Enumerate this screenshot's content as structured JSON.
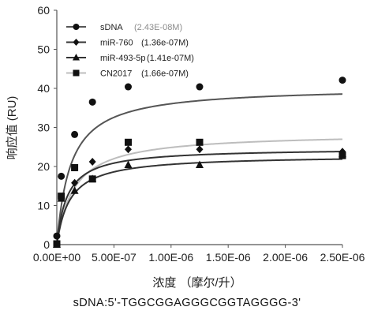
{
  "chart_data": {
    "type": "scatter",
    "ylabel": "响应值 (RU)",
    "xlabel": "浓度 （摩尔/升）",
    "xlim": [
      0,
      2.5e-06
    ],
    "ylim": [
      0,
      60
    ],
    "x_ticks": [
      0,
      5e-07,
      1e-06,
      1.5e-06,
      2e-06,
      2.5e-06
    ],
    "x_tick_labels": [
      "0.00E+00",
      "5.00E-07",
      "1.00E-06",
      "1.50E-06",
      "2.00E-06",
      "2.50E-06"
    ],
    "y_ticks": [
      0,
      10,
      20,
      30,
      40,
      50,
      60
    ],
    "y_tick_labels": [
      "0",
      "10",
      "20",
      "30",
      "40",
      "50",
      "60"
    ],
    "grid": false,
    "legend_position": "top-left",
    "series": [
      {
        "name": "sDNA",
        "kd_label": "(2.43E-08M)",
        "kd_color": "#8c8c8c",
        "marker": "circle",
        "marker_color": "#111111",
        "line_color": "#555555",
        "x": [
          0,
          3.9e-08,
          1.56e-07,
          3.12e-07,
          6.25e-07,
          1.25e-06,
          2.5e-06
        ],
        "y": [
          2.2,
          17.5,
          28.2,
          36.5,
          40.4,
          40.4,
          42.1
        ],
        "curve": {
          "Rmax": 40.4,
          "Kd": 1.2e-07
        }
      },
      {
        "name": "miR-760",
        "kd_label": "(1.36e-07M)",
        "kd_color": "#222222",
        "marker": "diamond",
        "marker_color": "#111111",
        "line_color": "#333333",
        "x": [
          0,
          3.9e-08,
          1.56e-07,
          3.12e-07,
          6.25e-07,
          1.25e-06,
          2.5e-06
        ],
        "y": [
          0.2,
          12.2,
          15.8,
          21.2,
          24.4,
          24.4,
          23.8
        ],
        "curve": {
          "Rmax": 24.7,
          "Kd": 9.2e-08
        }
      },
      {
        "name": "miR-493-5p",
        "kd_label": "(1.41e-07M)",
        "kd_color": "#222222",
        "marker": "triangle",
        "marker_color": "#111111",
        "line_color": "#333333",
        "x": [
          0,
          3.9e-08,
          1.56e-07,
          3.12e-07,
          6.25e-07,
          1.25e-06,
          2.5e-06
        ],
        "y": [
          0,
          11.8,
          13.8,
          16.8,
          20.4,
          20.4,
          23.2
        ],
        "curve": {
          "Rmax": 22.9,
          "Kd": 1.15e-07
        }
      },
      {
        "name": "CN2017",
        "kd_label": "(1.66e-07M)",
        "kd_color": "#222222",
        "marker": "square",
        "marker_color": "#111111",
        "line_color": "#bdbdbd",
        "x": [
          0,
          3.9e-08,
          1.56e-07,
          3.12e-07,
          6.25e-07,
          1.25e-06,
          2.5e-06
        ],
        "y": [
          0.2,
          12.4,
          19.7,
          16.8,
          26.2,
          26.2,
          22.8
        ],
        "curve": {
          "Rmax": 28.6,
          "Kd": 1.5e-07
        }
      }
    ]
  },
  "caption": "sDNA:5'-TGGCGGAGGGCGGTAGGGG-3'"
}
